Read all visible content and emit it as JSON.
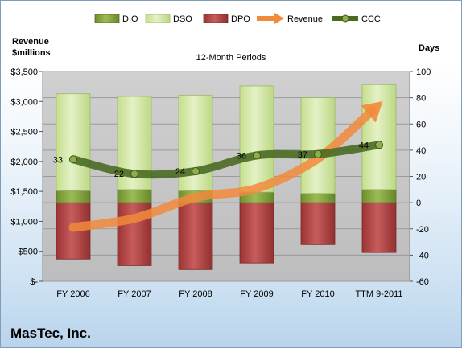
{
  "company": "MasTec, Inc.",
  "chart_data": {
    "type": "bar",
    "subtitle": "12-Month Periods",
    "left_axis_title": [
      "Revenue",
      "$millions"
    ],
    "right_axis_title": "Days",
    "categories": [
      "FY 2006",
      "FY 2007",
      "FY 2008",
      "FY 2009",
      "FY 2010",
      "TTM 9-2011"
    ],
    "left_ticks": [
      "$-",
      "$500",
      "$1,000",
      "$1,500",
      "$2,000",
      "$2,500",
      "$3,000",
      "$3,500"
    ],
    "right_ticks": [
      "-60",
      "-40",
      "-20",
      "0",
      "20",
      "40",
      "60",
      "80",
      "100"
    ],
    "ylim_left": [
      0,
      3500
    ],
    "ylim_right": [
      -60,
      100
    ],
    "legend_position": "top",
    "series": [
      {
        "name": "DIO",
        "kind": "stacked-bar",
        "axis": "right",
        "values": [
          9,
          10,
          9,
          8,
          7,
          10
        ],
        "color": "#7b9c3a"
      },
      {
        "name": "DSO",
        "kind": "stacked-bar",
        "axis": "right",
        "values": [
          74,
          71,
          73,
          81,
          73,
          80
        ],
        "color": "#d3e8a6"
      },
      {
        "name": "DPO",
        "kind": "negative-bar",
        "axis": "right",
        "values": [
          -43,
          -48,
          -51,
          -46,
          -32,
          -38
        ],
        "color": "#a83a3a"
      },
      {
        "name": "Revenue",
        "kind": "arrow-line",
        "axis": "left",
        "values": [
          900,
          1050,
          1400,
          1550,
          2050,
          2950
        ],
        "color": "#f0904a"
      },
      {
        "name": "CCC",
        "kind": "line",
        "axis": "right",
        "values": [
          33,
          22,
          24,
          36,
          37,
          44
        ],
        "color": "#4d6b27"
      }
    ],
    "data_labels": [
      "33",
      "22",
      "24",
      "36",
      "37",
      "44"
    ]
  }
}
